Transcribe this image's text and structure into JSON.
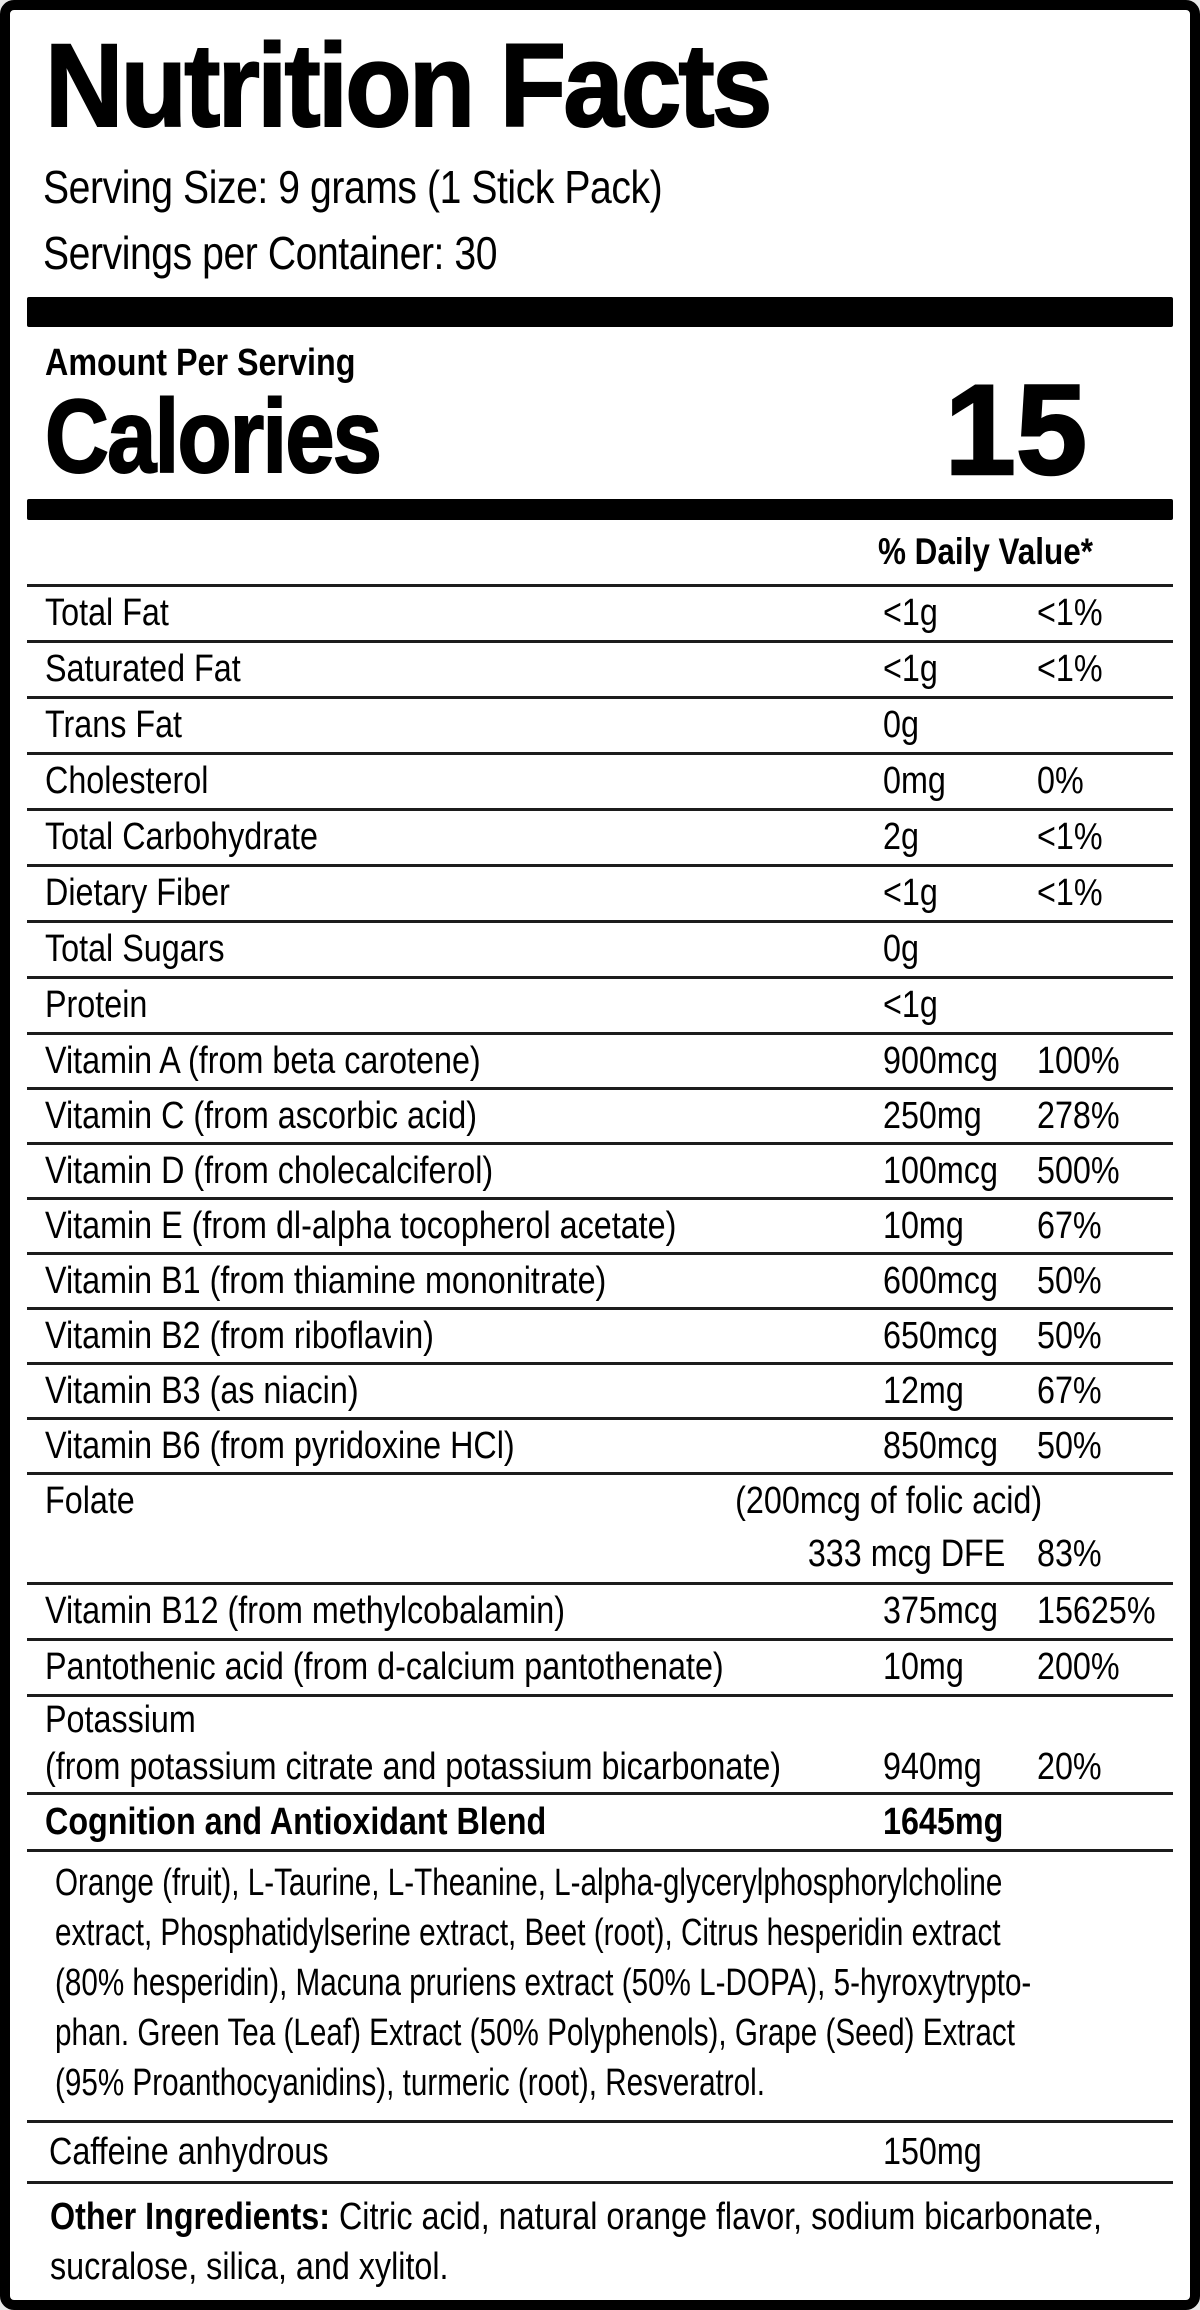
{
  "colors": {
    "background": "#ffffff",
    "text": "#000000"
  },
  "label": {
    "title": "Nutrition Facts",
    "serving_size": "Serving Size: 9 grams (1 Stick Pack)",
    "servings_per_container": "Servings per Container: 30",
    "amount_per_serving": "Amount Per Serving",
    "calories": {
      "label": "Calories",
      "value": "15"
    },
    "daily_value_header": "% Daily Value*",
    "rows_top": [
      {
        "name": "Total Fat",
        "amount": "<1g",
        "dv": "<1%"
      },
      {
        "name": "Saturated Fat",
        "amount": "<1g",
        "dv": "<1%"
      },
      {
        "name": "Trans Fat",
        "amount": "0g",
        "dv": ""
      },
      {
        "name": "Cholesterol",
        "amount": "0mg",
        "dv": "0%"
      },
      {
        "name": "Total Carbohydrate",
        "amount": "2g",
        "dv": "<1%"
      },
      {
        "name": "Dietary Fiber",
        "amount": "<1g",
        "dv": "<1%"
      },
      {
        "name": "Total Sugars",
        "amount": "0g",
        "dv": ""
      },
      {
        "name": "Protein",
        "amount": "<1g",
        "dv": ""
      },
      {
        "name": "Vitamin A (from beta carotene)",
        "amount": "900mcg",
        "dv": "100%"
      },
      {
        "name": "Vitamin C (from ascorbic acid)",
        "amount": "250mg",
        "dv": "278%"
      },
      {
        "name": "Vitamin D (from cholecalciferol)",
        "amount": "100mcg",
        "dv": "500%"
      },
      {
        "name": "Vitamin E (from dl-alpha tocopherol acetate)",
        "amount": "10mg",
        "dv": "67%"
      },
      {
        "name": "Vitamin B1 (from thiamine mononitrate)",
        "amount": "600mcg",
        "dv": "50%"
      },
      {
        "name": "Vitamin B2 (from riboflavin)",
        "amount": "650mcg",
        "dv": "50%"
      },
      {
        "name": "Vitamin B3 (as niacin)",
        "amount": "12mg",
        "dv": "67%"
      },
      {
        "name": "Vitamin B6 (from pyridoxine HCl)",
        "amount": "850mcg",
        "dv": "50%"
      }
    ],
    "folate": {
      "name": "Folate",
      "note": "(200mcg of folic acid)",
      "amount": "333 mcg DFE",
      "dv": "83%"
    },
    "rows_mid": [
      {
        "name": "Vitamin B12 (from methylcobalamin)",
        "amount": "375mcg",
        "dv": "15625%"
      },
      {
        "name": "Pantothenic acid (from d-calcium pantothenate)",
        "amount": "10mg",
        "dv": "200%"
      }
    ],
    "potassium": {
      "name": "Potassium",
      "source": "(from potassium citrate and potassium bicarbonate)",
      "amount": "940mg",
      "dv": "20%"
    },
    "blend": {
      "name": "Cognition and Antioxidant Blend",
      "amount": "1645mg",
      "dv": "**",
      "lines": [
        "Orange (fruit), L-Taurine, L-Theanine, L-alpha-glycerylphosphorylcholine",
        "extract, Phosphatidylserine extract, Beet (root), Citrus hesperidin extract",
        "(80% hesperidin), Macuna pruriens extract (50% L-DOPA), 5-hyroxytrypto-",
        "phan. Green Tea (Leaf) Extract (50% Polyphenols), Grape (Seed) Extract",
        "(95% Proanthocyanidins), turmeric (root), Resveratrol."
      ]
    },
    "caffeine": {
      "name": "Caffeine anhydrous",
      "amount": "150mg",
      "dv": "**"
    },
    "other_ingredients": {
      "prefix": "Other Ingredients:",
      "line1": " Citric acid, natural orange flavor, sodium bicarbonate,",
      "line2": "sucralose, silica, and xylitol."
    }
  }
}
